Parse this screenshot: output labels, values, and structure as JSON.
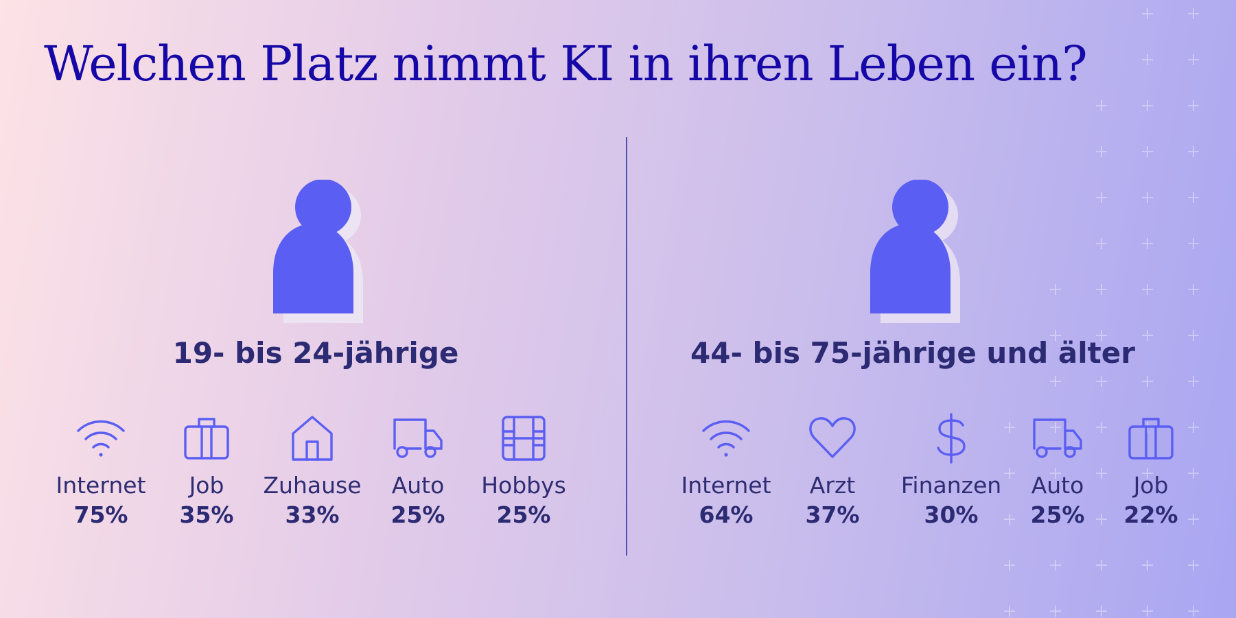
{
  "title": "Welchen Platz nimmt KI in ihren Leben ein?",
  "colors": {
    "accent": "#5b5ef2",
    "title": "#1608a6",
    "text": "#2b2a72",
    "divider": "#4b4fb0"
  },
  "groups": [
    {
      "label": "19- bis 24-jährige",
      "items": [
        {
          "icon": "wifi-icon",
          "name": "Internet",
          "value": "75%"
        },
        {
          "icon": "briefcase-icon",
          "name": "Job",
          "value": "35%"
        },
        {
          "icon": "house-icon",
          "name": "Zuhause",
          "value": "33%"
        },
        {
          "icon": "truck-icon",
          "name": "Auto",
          "value": "25%"
        },
        {
          "icon": "film-icon",
          "name": "Hobbys",
          "value": "25%"
        }
      ]
    },
    {
      "label": "44- bis 75-jährige und älter",
      "items": [
        {
          "icon": "wifi-icon",
          "name": "Internet",
          "value": "64%"
        },
        {
          "icon": "heart-icon",
          "name": "Arzt",
          "value": "37%"
        },
        {
          "icon": "dollar-icon",
          "name": "Finanzen",
          "value": "30%"
        },
        {
          "icon": "truck-icon",
          "name": "Auto",
          "value": "25%"
        },
        {
          "icon": "briefcase-icon",
          "name": "Job",
          "value": "22%"
        }
      ]
    }
  ]
}
